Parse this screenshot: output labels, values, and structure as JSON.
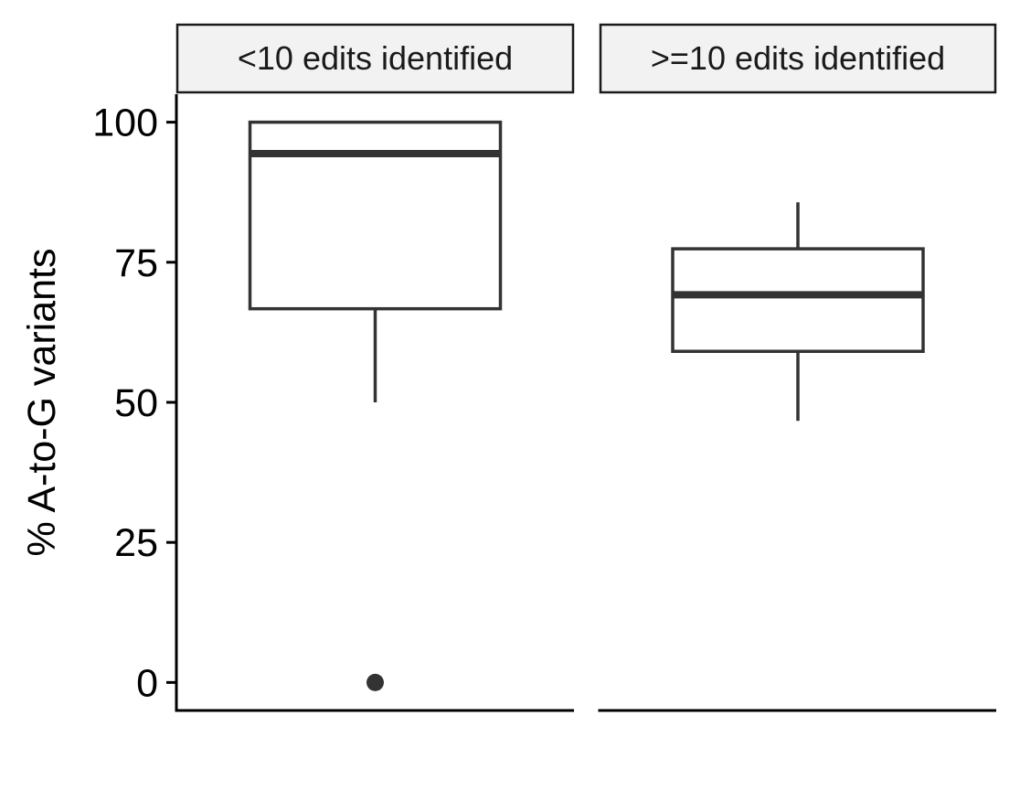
{
  "chart_data": {
    "type": "boxplot",
    "title": "",
    "xlabel": "",
    "ylabel": "% A-to-G variants",
    "ylim": [
      -5,
      105
    ],
    "yticks": [
      0,
      25,
      50,
      75,
      100
    ],
    "ytick_labels": [
      "0",
      "25",
      "50",
      "75",
      "100"
    ],
    "grid": false,
    "legend": "none",
    "facets": [
      {
        "label": "<10 edits identified",
        "box": {
          "lower_whisker": 50,
          "q1": 66.7,
          "median": 94.4,
          "q3": 100,
          "upper_whisker": 100
        },
        "outliers": [
          0
        ]
      },
      {
        "label": ">=10 edits identified",
        "box": {
          "lower_whisker": 46.7,
          "q1": 59.1,
          "median": 69.2,
          "q3": 77.4,
          "upper_whisker": 85.7
        },
        "outliers": []
      }
    ],
    "colors": {
      "box_line": "#333333",
      "box_fill": "#ffffff",
      "strip_fill": "#f2f2f2",
      "strip_border": "#1a1a1a",
      "axis": "#000000"
    }
  }
}
